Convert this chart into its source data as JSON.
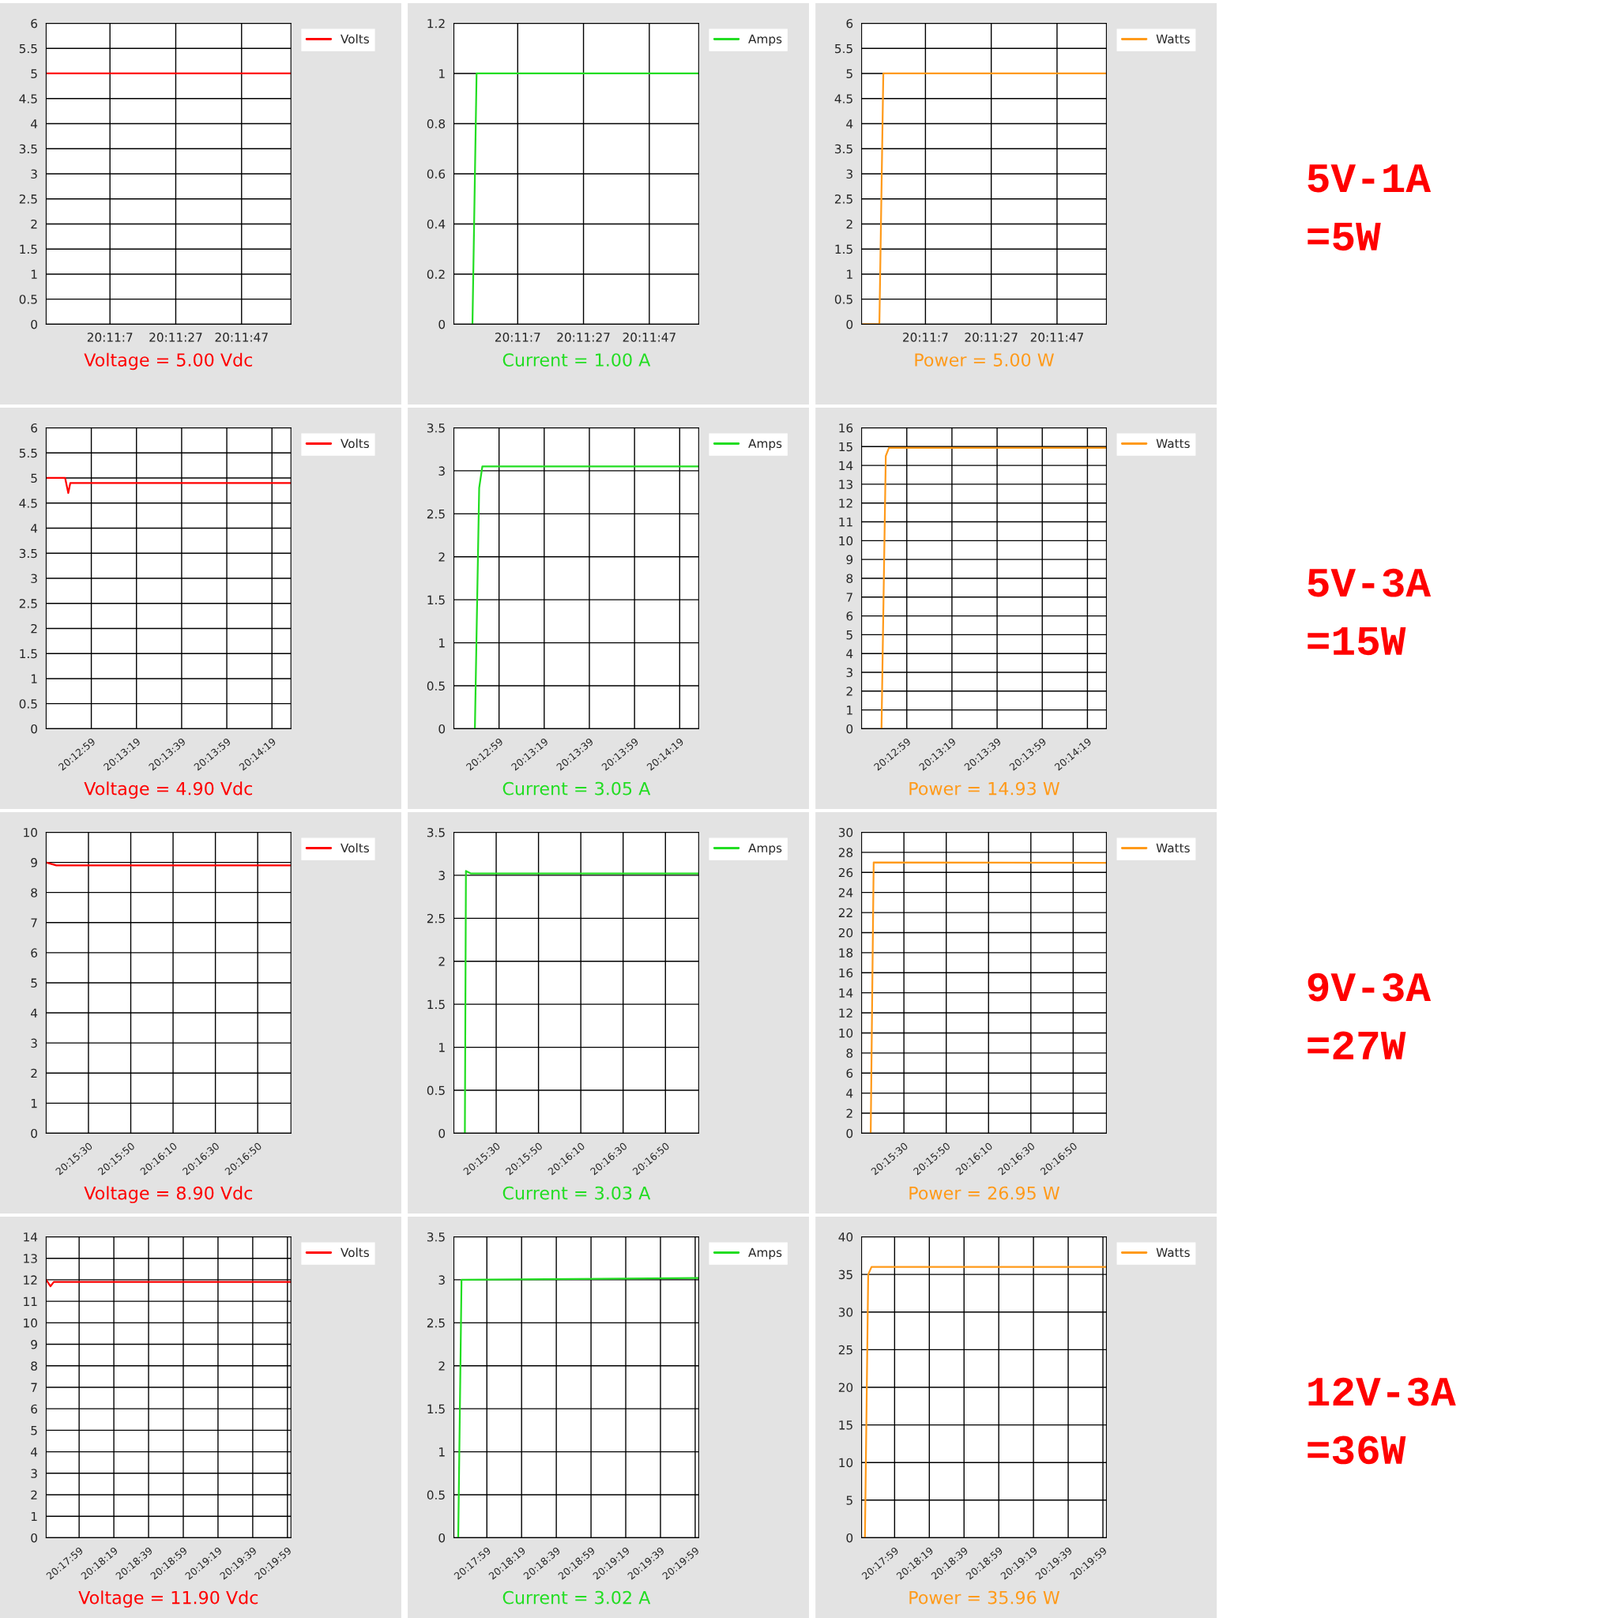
{
  "chart_data": [
    {
      "type": "line",
      "xlabel": "Voltage = 5.00 Vdc",
      "xlim": [
        20.179889,
        20.200556
      ],
      "xticks": [
        {
          "value": 20.185278,
          "label": "20:11:7"
        },
        {
          "value": 20.190833,
          "label": "20:11:27"
        },
        {
          "value": 20.196389,
          "label": "20:11:47"
        }
      ],
      "ylim": [
        0,
        6
      ],
      "yticks": [
        0,
        0.5,
        1,
        1.5,
        2,
        2.5,
        3,
        3.5,
        4,
        4.5,
        5,
        5.5,
        6
      ],
      "grid": true,
      "legend": "top right",
      "series": [
        {
          "name": "Volts",
          "color": "#ff0000",
          "x": [
            20.179889,
            20.200556
          ],
          "values": [
            5,
            5
          ]
        }
      ]
    },
    {
      "type": "line",
      "xlabel": "Current = 1.00 A",
      "xlim": [
        20.179889,
        20.200556
      ],
      "xticks": [
        {
          "value": 20.185278,
          "label": "20:11:7"
        },
        {
          "value": 20.190833,
          "label": "20:11:27"
        },
        {
          "value": 20.196389,
          "label": "20:11:47"
        }
      ],
      "ylim": [
        0,
        1.2
      ],
      "yticks": [
        0,
        0.2,
        0.4,
        0.6,
        0.8,
        1,
        1.2
      ],
      "grid": true,
      "legend": "top right",
      "series": [
        {
          "name": "Amps",
          "color": "#22dd22",
          "x": [
            20.181458,
            20.181806,
            20.200556
          ],
          "values": [
            0,
            1,
            1
          ]
        }
      ]
    },
    {
      "type": "line",
      "xlabel": "Power = 5.00 W",
      "xlim": [
        20.179889,
        20.200556
      ],
      "xticks": [
        {
          "value": 20.185278,
          "label": "20:11:7"
        },
        {
          "value": 20.190833,
          "label": "20:11:27"
        },
        {
          "value": 20.196389,
          "label": "20:11:47"
        }
      ],
      "ylim": [
        0,
        6
      ],
      "yticks": [
        0,
        0.5,
        1,
        1.5,
        2,
        2.5,
        3,
        3.5,
        4,
        4.5,
        5,
        5.5,
        6
      ],
      "grid": true,
      "legend": "top right",
      "annotations": [
        "5V-1A",
        "=5W"
      ],
      "series": [
        {
          "name": "Watts",
          "color": "#ff9a1a",
          "x": [
            20.18,
            20.181389,
            20.181722,
            20.200556
          ],
          "values": [
            0,
            0,
            5,
            5
          ]
        }
      ]
    },
    {
      "type": "line",
      "xlabel": "Voltage = 4.90 Vdc",
      "xlim": [
        20.210833,
        20.240944
      ],
      "xticks": [
        {
          "value": 20.216389,
          "label": "20:12:59"
        },
        {
          "value": 20.221944,
          "label": "20:13:19"
        },
        {
          "value": 20.2275,
          "label": "20:13:39"
        },
        {
          "value": 20.233056,
          "label": "20:13:59"
        },
        {
          "value": 20.238611,
          "label": "20:14:19"
        }
      ],
      "ylim": [
        0,
        6
      ],
      "yticks": [
        0,
        0.5,
        1,
        1.5,
        2,
        2.5,
        3,
        3.5,
        4,
        4.5,
        5,
        5.5,
        6
      ],
      "grid": true,
      "legend": "top right",
      "series": [
        {
          "name": "Volts",
          "color": "#ff0000",
          "x": [
            20.210833,
            20.213167,
            20.213556,
            20.213806,
            20.240944
          ],
          "values": [
            5,
            5,
            4.7,
            4.9,
            4.9
          ]
        }
      ]
    },
    {
      "type": "line",
      "xlabel": "Current = 3.05 A",
      "xlim": [
        20.210833,
        20.240944
      ],
      "xticks": [
        {
          "value": 20.216389,
          "label": "20:12:59"
        },
        {
          "value": 20.221944,
          "label": "20:13:19"
        },
        {
          "value": 20.2275,
          "label": "20:13:39"
        },
        {
          "value": 20.233056,
          "label": "20:13:59"
        },
        {
          "value": 20.238611,
          "label": "20:14:19"
        }
      ],
      "ylim": [
        0,
        3.5
      ],
      "yticks": [
        0,
        0.5,
        1,
        1.5,
        2,
        2.5,
        3,
        3.5
      ],
      "grid": true,
      "legend": "top right",
      "series": [
        {
          "name": "Amps",
          "color": "#22dd22",
          "x": [
            20.213417,
            20.213944,
            20.214333,
            20.240944
          ],
          "values": [
            0,
            2.8,
            3.05,
            3.05
          ]
        }
      ]
    },
    {
      "type": "line",
      "xlabel": "Power = 14.93 W",
      "xlim": [
        20.210833,
        20.240944
      ],
      "xticks": [
        {
          "value": 20.216389,
          "label": "20:12:59"
        },
        {
          "value": 20.221944,
          "label": "20:13:19"
        },
        {
          "value": 20.2275,
          "label": "20:13:39"
        },
        {
          "value": 20.233056,
          "label": "20:13:59"
        },
        {
          "value": 20.238611,
          "label": "20:14:19"
        }
      ],
      "ylim": [
        0,
        16
      ],
      "yticks": [
        0,
        1,
        2,
        3,
        4,
        5,
        6,
        7,
        8,
        9,
        10,
        11,
        12,
        13,
        14,
        15,
        16
      ],
      "grid": true,
      "legend": "top right",
      "annotations": [
        "5V-3A",
        "=15W"
      ],
      "series": [
        {
          "name": "Watts",
          "color": "#ff9a1a",
          "x": [
            20.213278,
            20.213806,
            20.214194,
            20.240944
          ],
          "values": [
            0,
            14.5,
            14.93,
            14.93
          ]
        }
      ]
    },
    {
      "type": "line",
      "xlabel": "Voltage = 8.90 Vdc",
      "xlim": [
        20.252778,
        20.284917
      ],
      "xticks": [
        {
          "value": 20.258333,
          "label": "20:15:30"
        },
        {
          "value": 20.263889,
          "label": "20:15:50"
        },
        {
          "value": 20.269444,
          "label": "20:16:10"
        },
        {
          "value": 20.275,
          "label": "20:16:30"
        },
        {
          "value": 20.280556,
          "label": "20:16:50"
        }
      ],
      "ylim": [
        0,
        10
      ],
      "yticks": [
        0,
        1,
        2,
        3,
        4,
        5,
        6,
        7,
        8,
        9,
        10
      ],
      "grid": true,
      "legend": "top right",
      "series": [
        {
          "name": "Volts",
          "color": "#ff0000",
          "x": [
            20.252778,
            20.254111,
            20.284917
          ],
          "values": [
            9,
            8.9,
            8.9
          ]
        }
      ]
    },
    {
      "type": "line",
      "xlabel": "Current = 3.03 A",
      "xlim": [
        20.252778,
        20.284917
      ],
      "xticks": [
        {
          "value": 20.258333,
          "label": "20:15:30"
        },
        {
          "value": 20.263889,
          "label": "20:15:50"
        },
        {
          "value": 20.269444,
          "label": "20:16:10"
        },
        {
          "value": 20.275,
          "label": "20:16:30"
        },
        {
          "value": 20.280556,
          "label": "20:16:50"
        }
      ],
      "ylim": [
        0,
        3.5
      ],
      "yticks": [
        0,
        0.5,
        1,
        1.5,
        2,
        2.5,
        3,
        3.5
      ],
      "grid": true,
      "legend": "top right",
      "series": [
        {
          "name": "Amps",
          "color": "#22dd22",
          "x": [
            20.254222,
            20.254361,
            20.255028,
            20.284917
          ],
          "values": [
            0,
            3.05,
            3.02,
            3.02
          ]
        }
      ]
    },
    {
      "type": "line",
      "xlabel": "Power = 26.95 W",
      "xlim": [
        20.252778,
        20.284917
      ],
      "xticks": [
        {
          "value": 20.258333,
          "label": "20:15:30"
        },
        {
          "value": 20.263889,
          "label": "20:15:50"
        },
        {
          "value": 20.269444,
          "label": "20:16:10"
        },
        {
          "value": 20.275,
          "label": "20:16:30"
        },
        {
          "value": 20.280556,
          "label": "20:16:50"
        }
      ],
      "ylim": [
        0,
        30
      ],
      "yticks": [
        0,
        2,
        4,
        6,
        8,
        10,
        12,
        14,
        16,
        18,
        20,
        22,
        24,
        26,
        28,
        30
      ],
      "grid": true,
      "legend": "top right",
      "annotations": [
        "9V-3A",
        "=27W"
      ],
      "series": [
        {
          "name": "Watts",
          "color": "#ff9a1a",
          "x": [
            20.253972,
            20.254361,
            20.284917
          ],
          "values": [
            0,
            27,
            26.95
          ]
        }
      ]
    },
    {
      "type": "line",
      "xlabel": "Voltage = 11.90 Vdc",
      "xlim": [
        20.294444,
        20.333611
      ],
      "xticks": [
        {
          "value": 20.299722,
          "label": "20:17:59"
        },
        {
          "value": 20.305278,
          "label": "20:18:19"
        },
        {
          "value": 20.310833,
          "label": "20:18:39"
        },
        {
          "value": 20.316389,
          "label": "20:18:59"
        },
        {
          "value": 20.321944,
          "label": "20:19:19"
        },
        {
          "value": 20.3275,
          "label": "20:19:39"
        },
        {
          "value": 20.333056,
          "label": "20:19:59"
        }
      ],
      "ylim": [
        0,
        14
      ],
      "yticks": [
        0,
        1,
        2,
        3,
        4,
        5,
        6,
        7,
        8,
        9,
        10,
        11,
        12,
        13,
        14
      ],
      "grid": true,
      "legend": "top right",
      "series": [
        {
          "name": "Volts",
          "color": "#ff0000",
          "x": [
            20.294444,
            20.295139,
            20.295667,
            20.333611
          ],
          "values": [
            12,
            11.7,
            11.9,
            11.9
          ]
        }
      ]
    },
    {
      "type": "line",
      "xlabel": "Current = 3.02 A",
      "xlim": [
        20.294444,
        20.333611
      ],
      "xticks": [
        {
          "value": 20.299722,
          "label": "20:17:59"
        },
        {
          "value": 20.305278,
          "label": "20:18:19"
        },
        {
          "value": 20.310833,
          "label": "20:18:39"
        },
        {
          "value": 20.316389,
          "label": "20:18:59"
        },
        {
          "value": 20.321944,
          "label": "20:19:19"
        },
        {
          "value": 20.3275,
          "label": "20:19:39"
        },
        {
          "value": 20.333056,
          "label": "20:19:59"
        }
      ],
      "ylim": [
        0,
        3.5
      ],
      "yticks": [
        0,
        0.5,
        1,
        1.5,
        2,
        2.5,
        3,
        3.5
      ],
      "grid": true,
      "legend": "top right",
      "series": [
        {
          "name": "Amps",
          "color": "#22dd22",
          "x": [
            20.295139,
            20.295667,
            20.333611
          ],
          "values": [
            0,
            3,
            3.02
          ]
        }
      ]
    },
    {
      "type": "line",
      "xlabel": "Power = 35.96 W",
      "xlim": [
        20.294444,
        20.333611
      ],
      "xticks": [
        {
          "value": 20.299722,
          "label": "20:17:59"
        },
        {
          "value": 20.305278,
          "label": "20:18:19"
        },
        {
          "value": 20.310833,
          "label": "20:18:39"
        },
        {
          "value": 20.316389,
          "label": "20:18:59"
        },
        {
          "value": 20.321944,
          "label": "20:19:19"
        },
        {
          "value": 20.3275,
          "label": "20:19:39"
        },
        {
          "value": 20.333056,
          "label": "20:19:59"
        }
      ],
      "ylim": [
        0,
        40
      ],
      "yticks": [
        0,
        5,
        10,
        15,
        20,
        25,
        30,
        35,
        40
      ],
      "grid": true,
      "legend": "top right",
      "annotations": [
        "12V-3A",
        "=36W"
      ],
      "series": [
        {
          "name": "Watts",
          "color": "#ff9a1a",
          "x": [
            20.294972,
            20.2955,
            20.296028,
            20.333611
          ],
          "values": [
            0,
            35,
            36,
            36
          ]
        }
      ]
    }
  ]
}
